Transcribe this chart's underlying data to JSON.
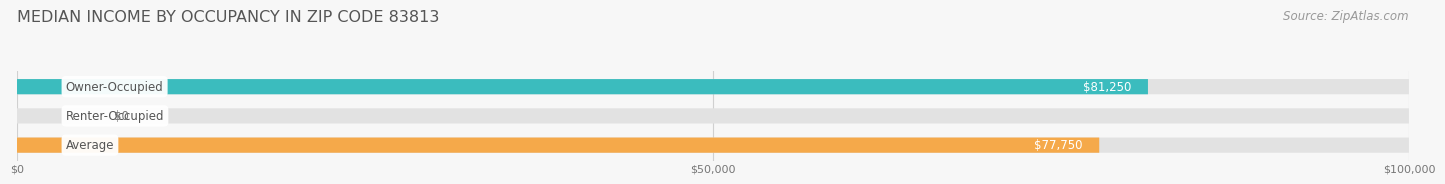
{
  "title": "MEDIAN INCOME BY OCCUPANCY IN ZIP CODE 83813",
  "source_text": "Source: ZipAtlas.com",
  "categories": [
    "Owner-Occupied",
    "Renter-Occupied",
    "Average"
  ],
  "values": [
    81250,
    0,
    77750
  ],
  "bar_colors": [
    "#3bbcbe",
    "#c4a8d8",
    "#f5a94a"
  ],
  "bar_bg_color": "#e2e2e2",
  "value_labels": [
    "$81,250",
    "$0",
    "$77,750"
  ],
  "x_ticks": [
    0,
    50000,
    100000
  ],
  "x_tick_labels": [
    "$0",
    "$50,000",
    "$100,000"
  ],
  "xlim": [
    0,
    100000
  ],
  "background_color": "#f7f7f7",
  "title_fontsize": 11.5,
  "source_fontsize": 8.5,
  "bar_height": 0.52,
  "label_fontsize": 8.5,
  "value_fontsize": 8.5,
  "grid_color": "#d0d0d0",
  "label_text_color": "#555555",
  "value_label_inside_color": "#ffffff",
  "value_label_outside_color": "#777777"
}
